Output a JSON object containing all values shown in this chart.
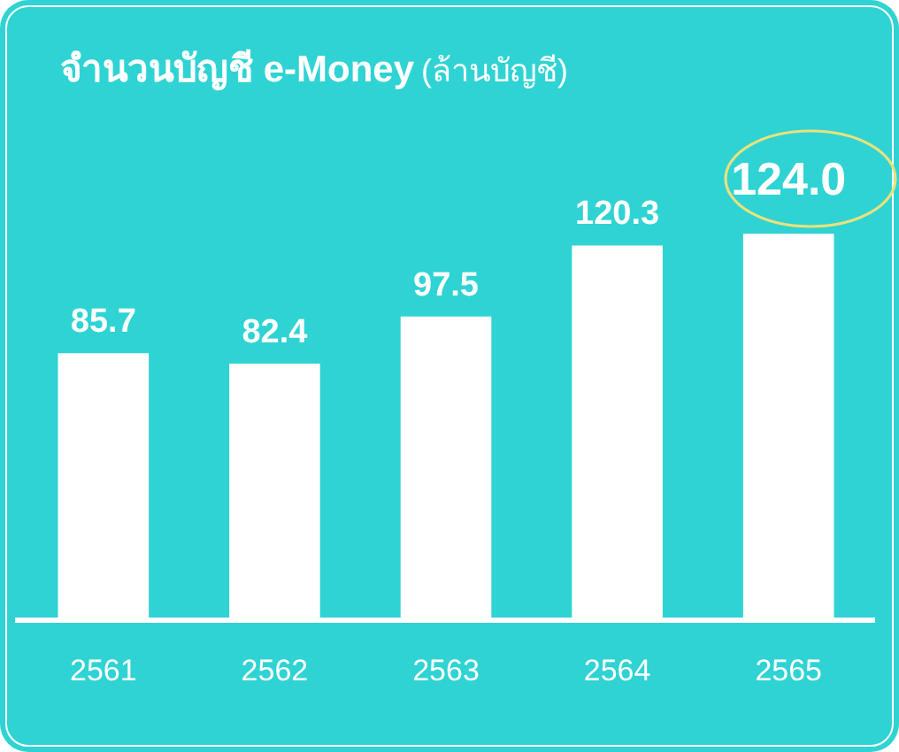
{
  "chart_data": {
    "type": "bar",
    "title": "จำนวนบัญชี e-Money",
    "subtitle": "(ล้านบัญชี)",
    "categories": [
      "2561",
      "2562",
      "2563",
      "2564",
      "2565"
    ],
    "values": [
      85.7,
      82.4,
      97.5,
      120.3,
      124.0
    ],
    "value_labels": [
      "85.7",
      "82.4",
      "97.5",
      "120.3",
      "124.0"
    ],
    "color": "#ffffff",
    "grid": false,
    "legend": false,
    "tick_labels": "x"
  }
}
